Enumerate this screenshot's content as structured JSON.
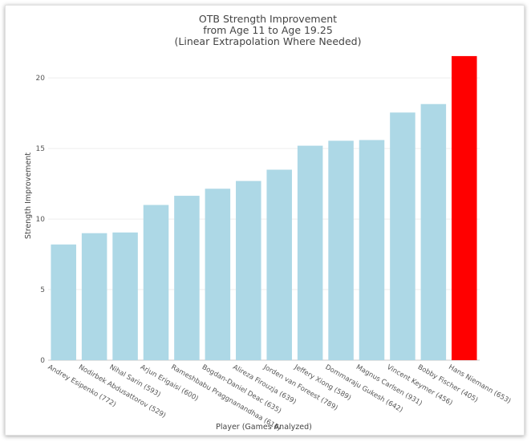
{
  "chart_data": {
    "type": "bar",
    "title": "OTB Strength Improvement",
    "subtitle_lines": [
      "from Age 11 to Age 19.25",
      "(Linear Extrapolation Where Needed)"
    ],
    "xlabel": "Player (Games Analyzed)",
    "ylabel": "Strength Improvement",
    "ylim": [
      0,
      22
    ],
    "yticks": [
      0,
      5,
      10,
      15,
      20
    ],
    "grid": true,
    "categories": [
      "Andrey Esipenko (772)",
      "Nodirbek Abdusattorov (529)",
      "Nihal Sarin (593)",
      "Arjun Erigaisi (600)",
      "Rameshbabu Praggnanandhaa (616)",
      "Bogdan-Daniel Deac (635)",
      "Alireza Firouzja (639)",
      "Jorden van Foreest (789)",
      "Jeffery Xiong (589)",
      "Dommaraju Gukesh (642)",
      "Magnus Carlsen (931)",
      "Vincent Keymer (456)",
      "Bobby Fischer (405)",
      "Hans Niemann (653)"
    ],
    "values": [
      8.2,
      9.0,
      9.05,
      11.0,
      11.65,
      12.15,
      12.7,
      13.5,
      15.2,
      15.55,
      15.6,
      17.55,
      18.15,
      21.55
    ],
    "colors": [
      "#add8e6",
      "#add8e6",
      "#add8e6",
      "#add8e6",
      "#add8e6",
      "#add8e6",
      "#add8e6",
      "#add8e6",
      "#add8e6",
      "#add8e6",
      "#add8e6",
      "#add8e6",
      "#add8e6",
      "#ff0000"
    ]
  }
}
